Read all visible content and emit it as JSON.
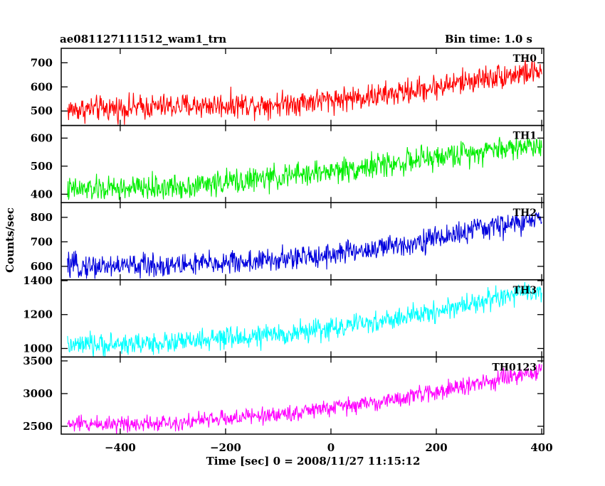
{
  "header": {
    "title": "ae081127111512_wam1_trn",
    "bin_time": "Bin time: 1.0 s"
  },
  "chart_data": {
    "type": "line",
    "xlabel": "Time [sec] 0 = 2008/11/27 11:15:12",
    "ylabel": "Counts/sec",
    "xlim": [
      -512,
      404
    ],
    "xticks": [
      -400,
      -200,
      0,
      200,
      400
    ],
    "xtick_labels": [
      "−400",
      "−200",
      "0",
      "200",
      "400"
    ],
    "x_range": [
      -500,
      400
    ],
    "bin_seconds": 1.0,
    "grid": false,
    "panels": [
      {
        "name": "TH0",
        "color": "#ff0000",
        "ylim": [
          440,
          760
        ],
        "yticks": [
          500,
          600,
          700
        ],
        "mean_at_x": [
          [
            -500,
            505
          ],
          [
            -300,
            520
          ],
          [
            -100,
            530
          ],
          [
            100,
            565
          ],
          [
            200,
            600
          ],
          [
            300,
            640
          ],
          [
            400,
            665
          ]
        ],
        "noise_amplitude": 45
      },
      {
        "name": "TH1",
        "color": "#00ee00",
        "ylim": [
          370,
          645
        ],
        "yticks": [
          400,
          500,
          600
        ],
        "mean_at_x": [
          [
            -500,
            415
          ],
          [
            -300,
            425
          ],
          [
            -100,
            460
          ],
          [
            100,
            505
          ],
          [
            200,
            530
          ],
          [
            300,
            560
          ],
          [
            400,
            575
          ]
        ],
        "noise_amplitude": 38
      },
      {
        "name": "TH2",
        "color": "#0000dd",
        "ylim": [
          545,
          860
        ],
        "yticks": [
          600,
          700,
          800
        ],
        "mean_at_x": [
          [
            -500,
            600
          ],
          [
            -300,
            605
          ],
          [
            -100,
            625
          ],
          [
            100,
            675
          ],
          [
            200,
            715
          ],
          [
            300,
            760
          ],
          [
            400,
            790
          ]
        ],
        "noise_amplitude": 42
      },
      {
        "name": "TH3",
        "color": "#00ffff",
        "ylim": [
          950,
          1405
        ],
        "yticks": [
          1000,
          1200,
          1400
        ],
        "mean_at_x": [
          [
            -500,
            1015
          ],
          [
            -300,
            1035
          ],
          [
            -100,
            1080
          ],
          [
            100,
            1160
          ],
          [
            200,
            1220
          ],
          [
            300,
            1290
          ],
          [
            400,
            1340
          ]
        ],
        "noise_amplitude": 55
      },
      {
        "name": "TH0123",
        "color": "#ff00ff",
        "ylim": [
          2380,
          3560
        ],
        "yticks": [
          2500,
          3000,
          3500
        ],
        "mean_at_x": [
          [
            -500,
            2530
          ],
          [
            -300,
            2560
          ],
          [
            -100,
            2680
          ],
          [
            100,
            2880
          ],
          [
            200,
            3030
          ],
          [
            300,
            3180
          ],
          [
            400,
            3340
          ]
        ],
        "noise_amplitude": 110
      }
    ]
  }
}
